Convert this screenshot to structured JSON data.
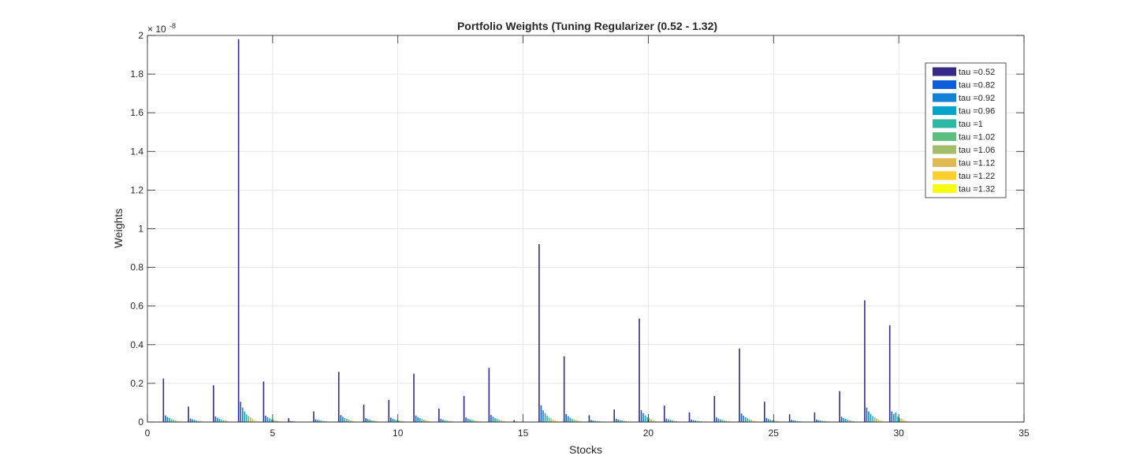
{
  "chart_data": {
    "type": "bar",
    "title": "Portfolio Weights (Tuning Regularizer (0.52 - 1.32)",
    "xlabel": "Stocks",
    "ylabel": "Weights",
    "y_exponent_label": "× 10",
    "y_exponent": "-8",
    "xlim": [
      0,
      35
    ],
    "ylim": [
      0,
      2
    ],
    "xticks": [
      0,
      5,
      10,
      15,
      20,
      25,
      30,
      35
    ],
    "yticks": [
      0,
      0.2,
      0.4,
      0.6,
      0.8,
      1,
      1.2,
      1.4,
      1.6,
      1.8,
      2
    ],
    "ytick_labels": [
      "0",
      "0.2",
      "0.4",
      "0.6",
      "0.8",
      "1",
      "1.2",
      "1.4",
      "1.6",
      "1.8",
      "2"
    ],
    "grid": true,
    "legend_position": "top-right",
    "categories": [
      1,
      2,
      3,
      4,
      5,
      6,
      7,
      8,
      9,
      10,
      11,
      12,
      13,
      14,
      15,
      16,
      17,
      18,
      19,
      20,
      21,
      22,
      23,
      24,
      25,
      26,
      27,
      28,
      29,
      30
    ],
    "series": [
      {
        "name": "tau =0.52",
        "color": "#352a87",
        "values": [
          0.225,
          0.08,
          0.19,
          1.98,
          0.21,
          0.02,
          0.055,
          0.26,
          0.09,
          0.115,
          0.25,
          0.07,
          0.135,
          0.28,
          0.01,
          0.92,
          0.34,
          0.035,
          0.065,
          0.535,
          0.085,
          0.05,
          0.135,
          0.38,
          0.105,
          0.04,
          0.05,
          0.16,
          0.63,
          0.5
        ]
      },
      {
        "name": "tau =0.82",
        "color": "#0f5cdd",
        "values": [
          0.034,
          0.018,
          0.029,
          0.105,
          0.033,
          0.005,
          0.014,
          0.036,
          0.02,
          0.023,
          0.034,
          0.016,
          0.024,
          0.037,
          0.003,
          0.085,
          0.041,
          0.01,
          0.017,
          0.06,
          0.018,
          0.013,
          0.024,
          0.044,
          0.02,
          0.011,
          0.013,
          0.027,
          0.075,
          0.055
        ]
      },
      {
        "name": "tau =0.92",
        "color": "#1481d6",
        "values": [
          0.026,
          0.014,
          0.022,
          0.075,
          0.025,
          0.004,
          0.011,
          0.027,
          0.015,
          0.017,
          0.026,
          0.012,
          0.018,
          0.028,
          0.002,
          0.06,
          0.031,
          0.008,
          0.013,
          0.045,
          0.014,
          0.01,
          0.018,
          0.033,
          0.015,
          0.009,
          0.01,
          0.02,
          0.055,
          0.042
        ]
      },
      {
        "name": "tau =0.96",
        "color": "#06a4ca",
        "values": [
          0.02,
          0.011,
          0.017,
          0.055,
          0.019,
          0.003,
          0.009,
          0.021,
          0.012,
          0.013,
          0.02,
          0.009,
          0.014,
          0.021,
          0.002,
          0.045,
          0.023,
          0.006,
          0.01,
          0.034,
          0.011,
          0.008,
          0.014,
          0.025,
          0.012,
          0.007,
          0.008,
          0.016,
          0.042,
          0.05
        ]
      },
      {
        "name": "tau =1",
        "color": "#2eb7a4",
        "values": [
          0.015,
          0.008,
          0.013,
          0.04,
          0.014,
          0.002,
          0.007,
          0.016,
          0.009,
          0.01,
          0.015,
          0.007,
          0.011,
          0.016,
          0.001,
          0.033,
          0.017,
          0.005,
          0.008,
          0.025,
          0.008,
          0.006,
          0.011,
          0.019,
          0.009,
          0.005,
          0.006,
          0.012,
          0.031,
          0.028
        ]
      },
      {
        "name": "tau =1.02",
        "color": "#5dbf7e",
        "values": [
          0.012,
          0.006,
          0.01,
          0.031,
          0.011,
          0.002,
          0.005,
          0.012,
          0.007,
          0.008,
          0.012,
          0.005,
          0.008,
          0.012,
          0.001,
          0.025,
          0.013,
          0.004,
          0.006,
          0.019,
          0.006,
          0.005,
          0.008,
          0.014,
          0.007,
          0.004,
          0.005,
          0.009,
          0.024,
          0.021
        ]
      },
      {
        "name": "tau =1.06",
        "color": "#a3bd6a",
        "values": [
          0.009,
          0.005,
          0.008,
          0.024,
          0.008,
          0.001,
          0.004,
          0.009,
          0.005,
          0.006,
          0.009,
          0.004,
          0.006,
          0.009,
          0.001,
          0.019,
          0.01,
          0.003,
          0.005,
          0.014,
          0.005,
          0.004,
          0.006,
          0.011,
          0.005,
          0.003,
          0.004,
          0.007,
          0.018,
          0.016
        ]
      },
      {
        "name": "tau =1.12",
        "color": "#e1b952",
        "values": [
          0.006,
          0.003,
          0.005,
          0.016,
          0.006,
          0.001,
          0.003,
          0.006,
          0.004,
          0.004,
          0.006,
          0.003,
          0.004,
          0.006,
          0.001,
          0.013,
          0.007,
          0.002,
          0.003,
          0.01,
          0.003,
          0.002,
          0.004,
          0.007,
          0.004,
          0.002,
          0.003,
          0.005,
          0.012,
          0.011
        ]
      },
      {
        "name": "tau =1.22",
        "color": "#fcce2e",
        "values": [
          0.004,
          0.002,
          0.003,
          0.01,
          0.004,
          0.001,
          0.002,
          0.004,
          0.002,
          0.003,
          0.004,
          0.002,
          0.003,
          0.004,
          0.0,
          0.008,
          0.004,
          0.001,
          0.002,
          0.006,
          0.002,
          0.002,
          0.003,
          0.005,
          0.002,
          0.001,
          0.002,
          0.003,
          0.008,
          0.007
        ]
      },
      {
        "name": "tau =1.32",
        "color": "#f9fb0e",
        "values": [
          0.002,
          0.001,
          0.002,
          0.006,
          0.002,
          0.0,
          0.001,
          0.002,
          0.001,
          0.002,
          0.002,
          0.001,
          0.002,
          0.002,
          0.0,
          0.005,
          0.003,
          0.001,
          0.001,
          0.004,
          0.001,
          0.001,
          0.002,
          0.003,
          0.001,
          0.001,
          0.001,
          0.002,
          0.005,
          0.004
        ]
      }
    ]
  }
}
